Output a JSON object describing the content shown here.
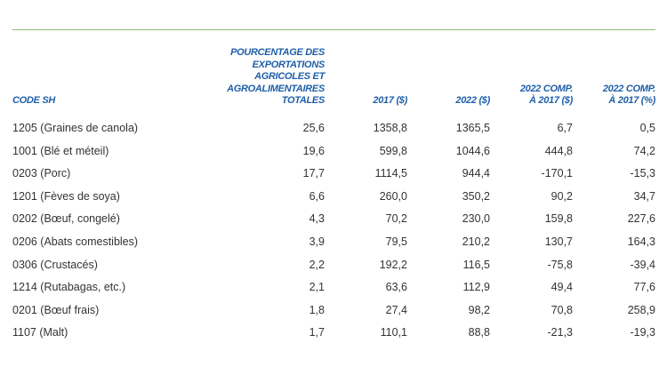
{
  "table": {
    "headers": [
      [
        "CODE SH"
      ],
      [
        "POURCENTAGE DES",
        "EXPORTATIONS",
        "AGRICOLES ET",
        "AGROALIMENTAIRES",
        "TOTALES"
      ],
      [
        "2017 ($)"
      ],
      [
        "2022 ($)"
      ],
      [
        "2022 COMP.",
        "À 2017 ($)"
      ],
      [
        "2022 COMP.",
        "À 2017 (%)"
      ]
    ],
    "rows": [
      [
        "1205 (Graines de canola)",
        "25,6",
        "1358,8",
        "1365,5",
        "6,7",
        "0,5"
      ],
      [
        "1001 (Blé et méteil)",
        "19,6",
        "599,8",
        "1044,6",
        "444,8",
        "74,2"
      ],
      [
        "0203 (Porc)",
        "17,7",
        "1114,5",
        "944,4",
        "-170,1",
        "-15,3"
      ],
      [
        "1201 (Fèves de soya)",
        "6,6",
        "260,0",
        "350,2",
        "90,2",
        "34,7"
      ],
      [
        "0202 (Bœuf, congelé)",
        "4,3",
        "70,2",
        "230,0",
        "159,8",
        "227,6"
      ],
      [
        "0206 (Abats comestibles)",
        "3,9",
        "79,5",
        "210,2",
        "130,7",
        "164,3"
      ],
      [
        "0306 (Crustacés)",
        "2,2",
        "192,2",
        "116,5",
        "-75,8",
        "-39,4"
      ],
      [
        "1214 (Rutabagas, etc.)",
        "2,1",
        "63,6",
        "112,9",
        "49,4",
        "77,6"
      ],
      [
        "0201 (Bœuf frais)",
        "1,8",
        "27,4",
        "98,2",
        "70,8",
        "258,9"
      ],
      [
        "1107 (Malt)",
        "1,7",
        "110,1",
        "88,8",
        "-21,3",
        "-19,3"
      ]
    ]
  }
}
